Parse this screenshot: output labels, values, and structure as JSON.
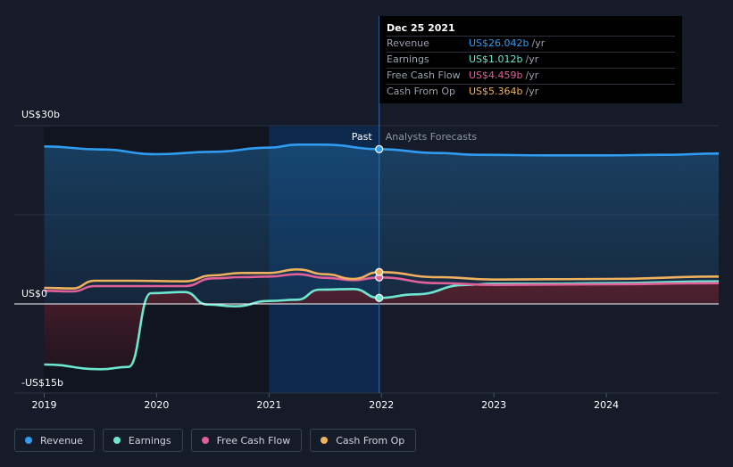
{
  "tooltip": {
    "date": "Dec 25 2021",
    "rows": [
      {
        "label": "Revenue",
        "value": "US$26.042b",
        "unit": "/yr",
        "color": "#2f9cf0"
      },
      {
        "label": "Earnings",
        "value": "US$1.012b",
        "unit": "/yr",
        "color": "#6ee7d0"
      },
      {
        "label": "Free Cash Flow",
        "value": "US$4.459b",
        "unit": "/yr",
        "color": "#e0609a"
      },
      {
        "label": "Cash From Op",
        "value": "US$5.364b",
        "unit": "/yr",
        "color": "#eeb15d"
      }
    ]
  },
  "divider": {
    "past_label": "Past",
    "forecast_label": "Analysts Forecasts"
  },
  "legend": [
    {
      "label": "Revenue",
      "color": "#2f9cf0"
    },
    {
      "label": "Earnings",
      "color": "#6ee7d0"
    },
    {
      "label": "Free Cash Flow",
      "color": "#e0609a"
    },
    {
      "label": "Cash From Op",
      "color": "#eeb15d"
    }
  ],
  "chart_data": {
    "type": "line",
    "y_tick_labels": [
      {
        "value": 30,
        "label": "US$30b"
      },
      {
        "value": 0,
        "label": "US$0"
      },
      {
        "value": -15,
        "label": "-US$15b"
      }
    ],
    "ylim": [
      -15,
      30
    ],
    "xlim": [
      2019,
      2025
    ],
    "x_ticks": [
      2019,
      2020,
      2021,
      2022,
      2023,
      2024
    ],
    "x_tick_labels": [
      "2019",
      "2020",
      "2021",
      "2022",
      "2023",
      "2024"
    ],
    "past_end": 2021.98,
    "highlight_start": 2021.0,
    "series": [
      {
        "name": "Revenue",
        "color": "#2f9cf0",
        "points": [
          [
            2019.0,
            26.5
          ],
          [
            2019.5,
            26.0
          ],
          [
            2020.0,
            25.2
          ],
          [
            2020.5,
            25.6
          ],
          [
            2021.0,
            26.3
          ],
          [
            2021.25,
            26.8
          ],
          [
            2021.5,
            26.8
          ],
          [
            2021.98,
            26.04
          ],
          [
            2022.5,
            25.4
          ],
          [
            2022.85,
            25.1
          ],
          [
            2023.5,
            25.0
          ],
          [
            2024.0,
            25.0
          ],
          [
            2024.5,
            25.1
          ],
          [
            2025.0,
            25.3
          ]
        ]
      },
      {
        "name": "Earnings",
        "color": "#6ee7d0",
        "points": [
          [
            2019.0,
            -10.2
          ],
          [
            2019.5,
            -11.0
          ],
          [
            2019.75,
            -10.6
          ],
          [
            2019.95,
            1.8
          ],
          [
            2020.25,
            2.0
          ],
          [
            2020.45,
            -0.1
          ],
          [
            2020.7,
            -0.4
          ],
          [
            2021.0,
            0.5
          ],
          [
            2021.25,
            0.7
          ],
          [
            2021.45,
            2.4
          ],
          [
            2021.75,
            2.5
          ],
          [
            2021.98,
            1.01
          ],
          [
            2022.3,
            1.6
          ],
          [
            2022.75,
            3.2
          ],
          [
            2023.0,
            3.4
          ],
          [
            2023.5,
            3.4
          ],
          [
            2024.0,
            3.5
          ],
          [
            2025.0,
            3.8
          ]
        ]
      },
      {
        "name": "Free Cash Flow",
        "color": "#e0609a",
        "points": [
          [
            2019.0,
            2.2
          ],
          [
            2019.25,
            2.1
          ],
          [
            2019.45,
            3.0
          ],
          [
            2019.75,
            3.0
          ],
          [
            2020.25,
            3.0
          ],
          [
            2020.5,
            4.3
          ],
          [
            2020.75,
            4.5
          ],
          [
            2021.0,
            4.6
          ],
          [
            2021.25,
            5.0
          ],
          [
            2021.5,
            4.4
          ],
          [
            2021.75,
            4.0
          ],
          [
            2021.98,
            4.46
          ],
          [
            2022.5,
            3.5
          ],
          [
            2023.0,
            3.2
          ],
          [
            2024.0,
            3.3
          ],
          [
            2025.0,
            3.5
          ]
        ]
      },
      {
        "name": "Cash From Op",
        "color": "#eeb15d",
        "points": [
          [
            2019.0,
            2.7
          ],
          [
            2019.25,
            2.6
          ],
          [
            2019.45,
            3.9
          ],
          [
            2019.75,
            3.9
          ],
          [
            2020.25,
            3.8
          ],
          [
            2020.5,
            4.8
          ],
          [
            2020.75,
            5.2
          ],
          [
            2021.0,
            5.2
          ],
          [
            2021.25,
            5.8
          ],
          [
            2021.5,
            5.0
          ],
          [
            2021.75,
            4.2
          ],
          [
            2021.98,
            5.36
          ],
          [
            2022.5,
            4.5
          ],
          [
            2023.0,
            4.1
          ],
          [
            2024.0,
            4.2
          ],
          [
            2025.0,
            4.6
          ]
        ]
      }
    ],
    "fill_series": "Revenue",
    "negative_fill_series": "Earnings"
  }
}
